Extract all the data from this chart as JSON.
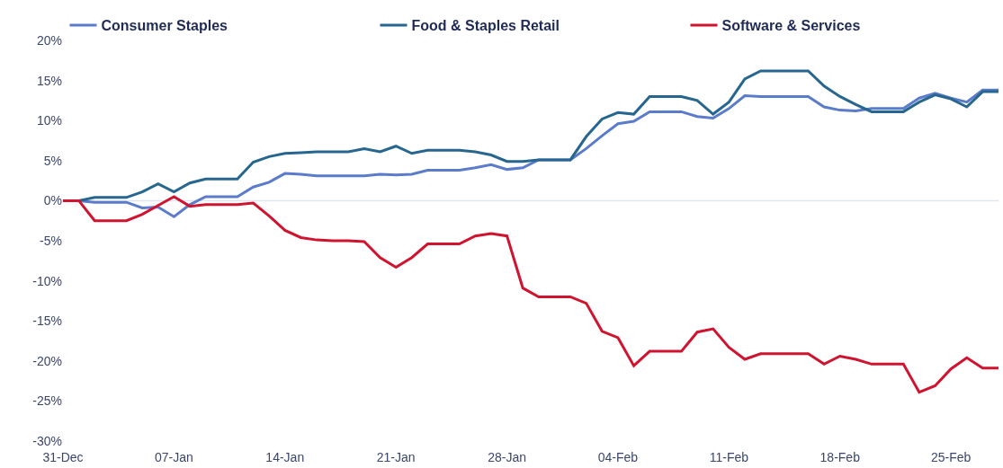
{
  "chart_data": {
    "type": "line",
    "categories": [
      "31-Dec",
      null,
      null,
      null,
      null,
      null,
      null,
      "07-Jan",
      null,
      null,
      null,
      null,
      null,
      null,
      "14-Jan",
      null,
      null,
      null,
      null,
      null,
      null,
      "21-Jan",
      null,
      null,
      null,
      null,
      null,
      null,
      "28-Jan",
      null,
      null,
      null,
      null,
      null,
      null,
      "04-Feb",
      null,
      null,
      null,
      null,
      null,
      null,
      "11-Feb",
      null,
      null,
      null,
      null,
      null,
      null,
      "18-Feb",
      null,
      null,
      null,
      null,
      null,
      null,
      "25-Feb",
      null,
      null,
      null
    ],
    "series": [
      {
        "name": "Consumer Staples",
        "color": "#5b7bcb",
        "values": [
          0,
          0,
          -0.2,
          -0.2,
          -0.2,
          -0.9,
          -0.8,
          -2.0,
          -0.5,
          0.5,
          0.5,
          0.5,
          1.7,
          2.3,
          3.4,
          3.3,
          3.1,
          3.1,
          3.1,
          3.1,
          3.3,
          3.2,
          3.3,
          3.8,
          3.8,
          3.8,
          4.1,
          4.5,
          3.9,
          4.1,
          5.1,
          5.1,
          5.1,
          6.5,
          8.1,
          9.6,
          9.9,
          11.1,
          11.1,
          11.1,
          10.5,
          10.3,
          11.5,
          13.1,
          13.0,
          13.0,
          13.0,
          13.0,
          11.7,
          11.3,
          11.2,
          11.5,
          11.5,
          11.5,
          12.8,
          13.4,
          12.8,
          12.3,
          13.8,
          13.8
        ]
      },
      {
        "name": "Food & Staples Retail",
        "color": "#27668f",
        "values": [
          0,
          0,
          0.4,
          0.4,
          0.4,
          1.1,
          2.1,
          1.1,
          2.2,
          2.7,
          2.7,
          2.7,
          4.8,
          5.5,
          5.9,
          6.0,
          6.1,
          6.1,
          6.1,
          6.5,
          6.1,
          6.8,
          5.9,
          6.3,
          6.3,
          6.3,
          6.1,
          5.7,
          4.9,
          4.9,
          5.1,
          5.1,
          5.1,
          8.0,
          10.2,
          11.0,
          10.8,
          13.0,
          13.0,
          13.0,
          12.5,
          10.8,
          12.3,
          15.2,
          16.2,
          16.2,
          16.2,
          16.2,
          14.3,
          13.0,
          12.0,
          11.1,
          11.1,
          11.1,
          12.3,
          13.2,
          12.7,
          11.7,
          13.6,
          13.6
        ]
      },
      {
        "name": "Software & Services",
        "color": "#d0142f",
        "values": [
          0,
          0,
          -2.5,
          -2.5,
          -2.5,
          -1.7,
          -0.6,
          0.5,
          -0.7,
          -0.5,
          -0.5,
          -0.5,
          -0.3,
          -1.9,
          -3.7,
          -4.6,
          -4.9,
          -5.0,
          -5.0,
          -5.1,
          -7.1,
          -8.3,
          -7.1,
          -5.4,
          -5.4,
          -5.4,
          -4.4,
          -4.1,
          -4.4,
          -10.9,
          -12.0,
          -12.0,
          -12.0,
          -12.8,
          -16.3,
          -17.1,
          -20.6,
          -18.8,
          -18.8,
          -18.8,
          -16.4,
          -16.0,
          -18.3,
          -19.8,
          -19.1,
          -19.1,
          -19.1,
          -19.1,
          -20.4,
          -19.4,
          -19.8,
          -20.4,
          -20.4,
          -20.4,
          -23.9,
          -23.1,
          -21.0,
          -19.6,
          -20.9,
          -20.9
        ]
      }
    ],
    "ylim": [
      -30,
      20
    ],
    "yticks": [
      {
        "value": 20,
        "label": "20%"
      },
      {
        "value": 15,
        "label": "15%"
      },
      {
        "value": 10,
        "label": "10%"
      },
      {
        "value": 5,
        "label": "5%"
      },
      {
        "value": 0,
        "label": "0%"
      },
      {
        "value": -5,
        "label": "-5%"
      },
      {
        "value": -10,
        "label": "-10%"
      },
      {
        "value": -15,
        "label": "-15%"
      },
      {
        "value": -20,
        "label": "-20%"
      },
      {
        "value": -25,
        "label": "-25%"
      },
      {
        "value": -30,
        "label": "-30%"
      }
    ],
    "ref_lines": [
      {
        "axis": "y",
        "value": 0,
        "color": "#dfe5f0"
      }
    ],
    "grid": false,
    "legend": "top",
    "marker": "none",
    "line_style": "solid"
  }
}
